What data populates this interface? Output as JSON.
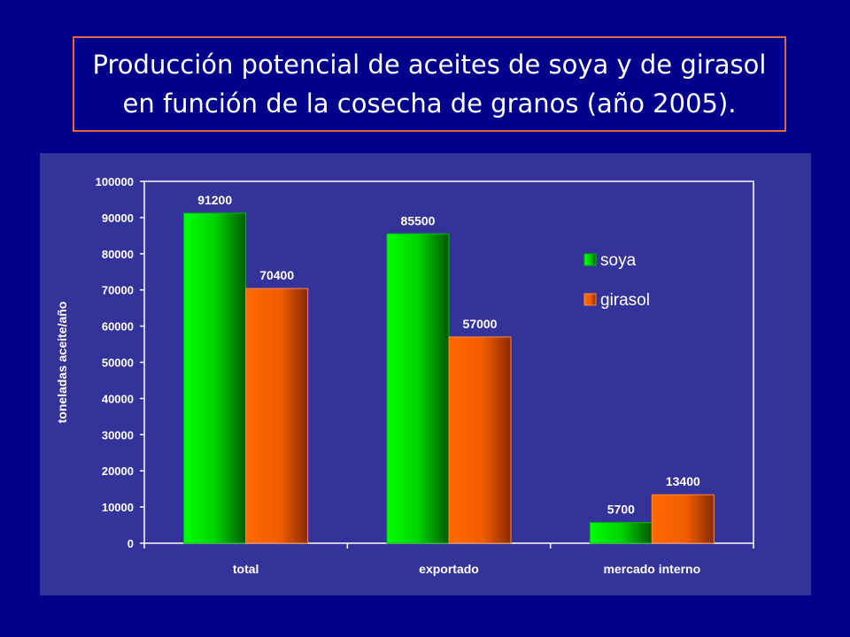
{
  "title": {
    "line1": "Producción potencial de aceites de soya y de girasol",
    "line2": "en función de la cosecha de granos (año 2005)."
  },
  "colors": {
    "background": "#00008b",
    "panel": "#333399",
    "title_border": "#e8663a",
    "soya": "#00e400",
    "girasol": "#ff6600"
  },
  "chart_data": {
    "type": "bar",
    "categories": [
      "total",
      "exportado",
      "mercado interno"
    ],
    "series": [
      {
        "name": "soya",
        "values": [
          91200,
          85500,
          5700
        ]
      },
      {
        "name": "girasol",
        "values": [
          70400,
          57000,
          13400
        ]
      }
    ],
    "ylabel": "toneladas aceite/año",
    "ylim": [
      0,
      100000
    ],
    "yticks": [
      0,
      10000,
      20000,
      30000,
      40000,
      50000,
      60000,
      70000,
      80000,
      90000,
      100000
    ],
    "data_labels": true,
    "grid": false,
    "legend": "right"
  }
}
